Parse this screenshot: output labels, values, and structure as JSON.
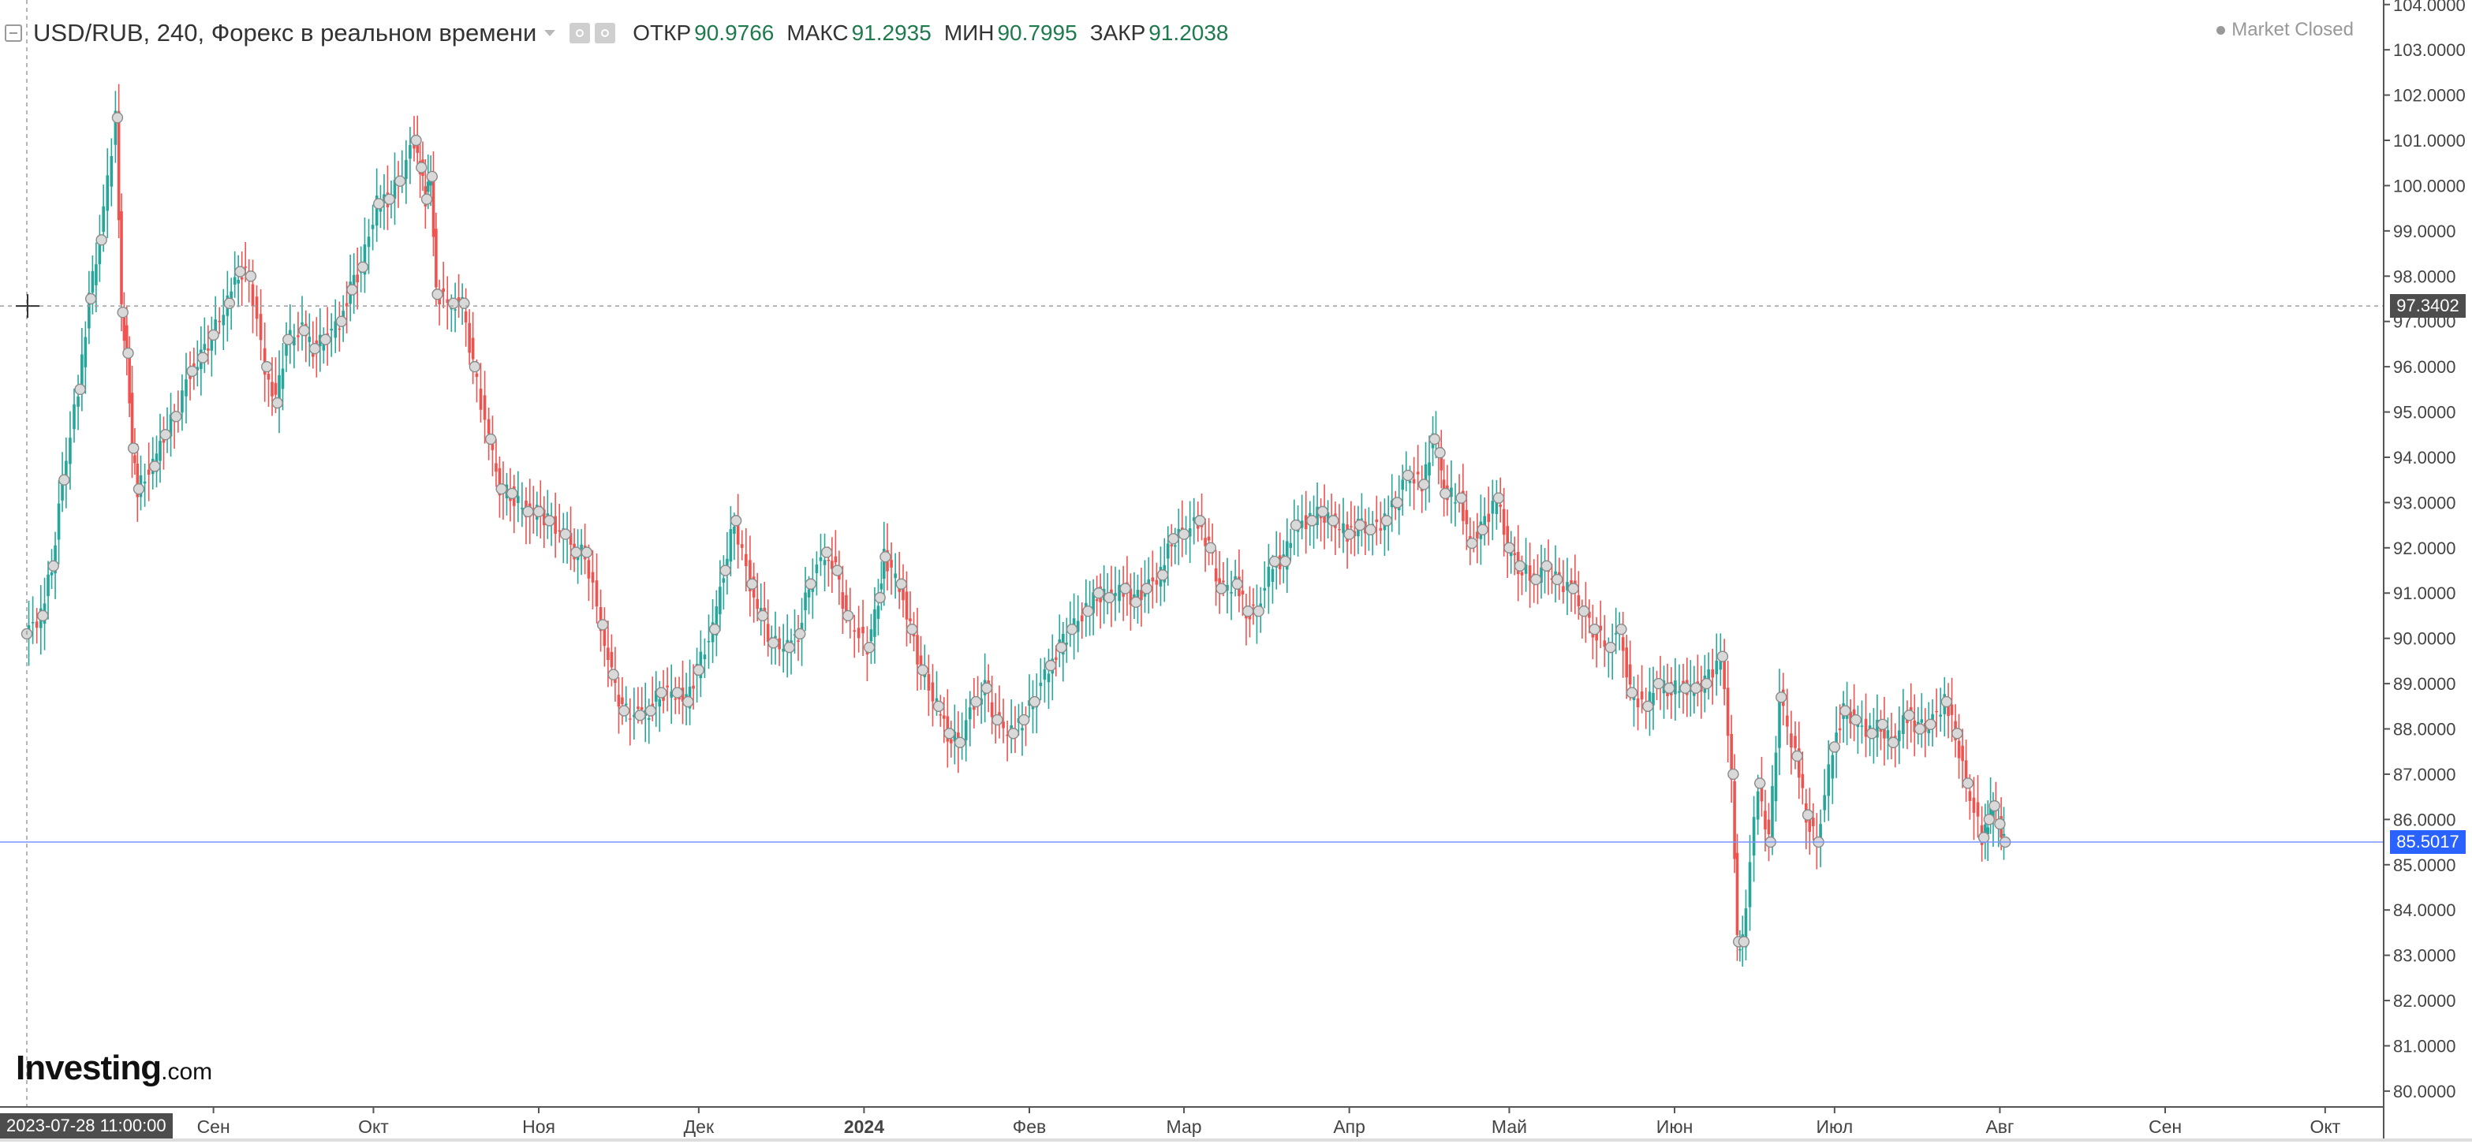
{
  "header": {
    "symbol_title": "USD/RUB, 240, Форекс в реальном времени",
    "ohlc": {
      "open_label": "ОТКР",
      "open_value": "90.9766",
      "high_label": "МАКС",
      "high_value": "91.2935",
      "low_label": "МИН",
      "low_value": "90.7995",
      "close_label": "ЗАКР",
      "close_value": "91.2038"
    }
  },
  "status": "Market Closed",
  "logo": {
    "main": "Investing",
    "suffix": ".com"
  },
  "crosshair": {
    "price_label": "97.3402",
    "time_label": "2023-07-28 11:00:00",
    "price": 97.3402
  },
  "last_price": {
    "label": "85.5017",
    "price": 85.5017
  },
  "colors": {
    "up": "#26a69a",
    "down": "#ef5350",
    "last_line": "#7b93ff",
    "crosshair": "#9e9e9e"
  },
  "chart_data": {
    "type": "line",
    "symbol": "USD/RUB",
    "timeframe": "240",
    "ylim": [
      79.65,
      104.1
    ],
    "y_ticks": [
      80,
      81,
      82,
      83,
      84,
      85,
      86,
      87,
      88,
      89,
      90,
      91,
      92,
      93,
      94,
      95,
      96,
      97,
      98,
      99,
      100,
      101,
      102,
      103,
      104
    ],
    "y_tick_labels": [
      "80.0000",
      "81.0000",
      "82.0000",
      "83.0000",
      "84.0000",
      "85.0000",
      "86.0000",
      "87.0000",
      "88.0000",
      "89.0000",
      "90.0000",
      "91.0000",
      "92.0000",
      "93.0000",
      "94.0000",
      "95.0000",
      "96.0000",
      "97.0000",
      "98.0000",
      "99.0000",
      "100.0000",
      "101.0000",
      "102.0000",
      "103.0000",
      "104.0000"
    ],
    "x_ticks": [
      {
        "label": "Сен",
        "date": "2023-09-01",
        "bold": false
      },
      {
        "label": "Окт",
        "date": "2023-10-01",
        "bold": false
      },
      {
        "label": "Ноя",
        "date": "2023-11-01",
        "bold": false
      },
      {
        "label": "Дек",
        "date": "2023-12-01",
        "bold": false
      },
      {
        "label": "2024",
        "date": "2024-01-01",
        "bold": true
      },
      {
        "label": "Фев",
        "date": "2024-02-01",
        "bold": false
      },
      {
        "label": "Мар",
        "date": "2024-03-01",
        "bold": false
      },
      {
        "label": "Апр",
        "date": "2024-04-01",
        "bold": false
      },
      {
        "label": "Май",
        "date": "2024-05-01",
        "bold": false
      },
      {
        "label": "Июн",
        "date": "2024-06-01",
        "bold": false
      },
      {
        "label": "Июл",
        "date": "2024-07-01",
        "bold": false
      },
      {
        "label": "Авг",
        "date": "2024-08-01",
        "bold": false
      },
      {
        "label": "Сен",
        "date": "2024-09-01",
        "bold": false
      },
      {
        "label": "Окт",
        "date": "2024-10-01",
        "bold": false
      }
    ],
    "x_range": [
      "2023-07-28",
      "2024-10-17"
    ],
    "series": [
      {
        "points": [
          [
            "2023-07-28",
            90.1
          ],
          [
            "2023-07-31",
            90.5
          ],
          [
            "2023-08-02",
            91.6
          ],
          [
            "2023-08-04",
            93.5
          ],
          [
            "2023-08-07",
            95.5
          ],
          [
            "2023-08-09",
            97.5
          ],
          [
            "2023-08-11",
            98.8
          ],
          [
            "2023-08-14",
            101.5
          ],
          [
            "2023-08-15",
            97.2
          ],
          [
            "2023-08-16",
            96.3
          ],
          [
            "2023-08-17",
            94.2
          ],
          [
            "2023-08-18",
            93.3
          ],
          [
            "2023-08-21",
            93.8
          ],
          [
            "2023-08-23",
            94.5
          ],
          [
            "2023-08-25",
            94.9
          ],
          [
            "2023-08-28",
            95.9
          ],
          [
            "2023-08-30",
            96.2
          ],
          [
            "2023-09-01",
            96.7
          ],
          [
            "2023-09-04",
            97.4
          ],
          [
            "2023-09-06",
            98.1
          ],
          [
            "2023-09-08",
            98.0
          ],
          [
            "2023-09-11",
            96.0
          ],
          [
            "2023-09-13",
            95.2
          ],
          [
            "2023-09-15",
            96.6
          ],
          [
            "2023-09-18",
            96.8
          ],
          [
            "2023-09-20",
            96.4
          ],
          [
            "2023-09-22",
            96.6
          ],
          [
            "2023-09-25",
            97.0
          ],
          [
            "2023-09-27",
            97.7
          ],
          [
            "2023-09-29",
            98.2
          ],
          [
            "2023-10-02",
            99.6
          ],
          [
            "2023-10-04",
            99.7
          ],
          [
            "2023-10-06",
            100.1
          ],
          [
            "2023-10-09",
            101.0
          ],
          [
            "2023-10-10",
            100.4
          ],
          [
            "2023-10-11",
            99.7
          ],
          [
            "2023-10-12",
            100.2
          ],
          [
            "2023-10-13",
            97.6
          ],
          [
            "2023-10-16",
            97.4
          ],
          [
            "2023-10-18",
            97.4
          ],
          [
            "2023-10-20",
            96.0
          ],
          [
            "2023-10-23",
            94.4
          ],
          [
            "2023-10-25",
            93.3
          ],
          [
            "2023-10-27",
            93.2
          ],
          [
            "2023-10-30",
            92.8
          ],
          [
            "2023-11-01",
            92.8
          ],
          [
            "2023-11-03",
            92.6
          ],
          [
            "2023-11-06",
            92.3
          ],
          [
            "2023-11-08",
            91.9
          ],
          [
            "2023-11-10",
            91.9
          ],
          [
            "2023-11-13",
            90.3
          ],
          [
            "2023-11-15",
            89.2
          ],
          [
            "2023-11-17",
            88.4
          ],
          [
            "2023-11-20",
            88.3
          ],
          [
            "2023-11-22",
            88.4
          ],
          [
            "2023-11-24",
            88.8
          ],
          [
            "2023-11-27",
            88.8
          ],
          [
            "2023-11-29",
            88.6
          ],
          [
            "2023-12-01",
            89.3
          ],
          [
            "2023-12-04",
            90.2
          ],
          [
            "2023-12-06",
            91.5
          ],
          [
            "2023-12-08",
            92.6
          ],
          [
            "2023-12-11",
            91.2
          ],
          [
            "2023-12-13",
            90.5
          ],
          [
            "2023-12-15",
            89.9
          ],
          [
            "2023-12-18",
            89.8
          ],
          [
            "2023-12-20",
            90.1
          ],
          [
            "2023-12-22",
            91.2
          ],
          [
            "2023-12-25",
            91.9
          ],
          [
            "2023-12-27",
            91.5
          ],
          [
            "2023-12-29",
            90.5
          ],
          [
            "2024-01-02",
            89.8
          ],
          [
            "2024-01-04",
            90.9
          ],
          [
            "2024-01-05",
            91.8
          ],
          [
            "2024-01-08",
            91.2
          ],
          [
            "2024-01-10",
            90.2
          ],
          [
            "2024-01-12",
            89.3
          ],
          [
            "2024-01-15",
            88.5
          ],
          [
            "2024-01-17",
            87.9
          ],
          [
            "2024-01-19",
            87.7
          ],
          [
            "2024-01-22",
            88.6
          ],
          [
            "2024-01-24",
            88.9
          ],
          [
            "2024-01-26",
            88.2
          ],
          [
            "2024-01-29",
            87.9
          ],
          [
            "2024-01-31",
            88.2
          ],
          [
            "2024-02-02",
            88.6
          ],
          [
            "2024-02-05",
            89.4
          ],
          [
            "2024-02-07",
            89.8
          ],
          [
            "2024-02-09",
            90.2
          ],
          [
            "2024-02-12",
            90.6
          ],
          [
            "2024-02-14",
            91.0
          ],
          [
            "2024-02-16",
            90.9
          ],
          [
            "2024-02-19",
            91.1
          ],
          [
            "2024-02-21",
            90.8
          ],
          [
            "2024-02-23",
            91.1
          ],
          [
            "2024-02-26",
            91.4
          ],
          [
            "2024-02-28",
            92.2
          ],
          [
            "2024-03-01",
            92.3
          ],
          [
            "2024-03-04",
            92.6
          ],
          [
            "2024-03-06",
            92.0
          ],
          [
            "2024-03-08",
            91.1
          ],
          [
            "2024-03-11",
            91.2
          ],
          [
            "2024-03-13",
            90.6
          ],
          [
            "2024-03-15",
            90.6
          ],
          [
            "2024-03-18",
            91.7
          ],
          [
            "2024-03-20",
            91.7
          ],
          [
            "2024-03-22",
            92.5
          ],
          [
            "2024-03-25",
            92.6
          ],
          [
            "2024-03-27",
            92.8
          ],
          [
            "2024-03-29",
            92.6
          ],
          [
            "2024-04-01",
            92.3
          ],
          [
            "2024-04-03",
            92.5
          ],
          [
            "2024-04-05",
            92.4
          ],
          [
            "2024-04-08",
            92.6
          ],
          [
            "2024-04-10",
            93.0
          ],
          [
            "2024-04-12",
            93.6
          ],
          [
            "2024-04-15",
            93.4
          ],
          [
            "2024-04-17",
            94.4
          ],
          [
            "2024-04-18",
            94.1
          ],
          [
            "2024-04-19",
            93.2
          ],
          [
            "2024-04-22",
            93.1
          ],
          [
            "2024-04-24",
            92.1
          ],
          [
            "2024-04-26",
            92.4
          ],
          [
            "2024-04-29",
            93.1
          ],
          [
            "2024-05-01",
            92.0
          ],
          [
            "2024-05-03",
            91.6
          ],
          [
            "2024-05-06",
            91.3
          ],
          [
            "2024-05-08",
            91.6
          ],
          [
            "2024-05-10",
            91.3
          ],
          [
            "2024-05-13",
            91.1
          ],
          [
            "2024-05-15",
            90.6
          ],
          [
            "2024-05-17",
            90.2
          ],
          [
            "2024-05-20",
            89.8
          ],
          [
            "2024-05-22",
            90.2
          ],
          [
            "2024-05-24",
            88.8
          ],
          [
            "2024-05-27",
            88.5
          ],
          [
            "2024-05-29",
            89.0
          ],
          [
            "2024-05-31",
            88.9
          ],
          [
            "2024-06-03",
            88.9
          ],
          [
            "2024-06-05",
            88.9
          ],
          [
            "2024-06-07",
            89.0
          ],
          [
            "2024-06-10",
            89.6
          ],
          [
            "2024-06-12",
            87.0
          ],
          [
            "2024-06-13",
            83.3
          ],
          [
            "2024-06-14",
            83.3
          ],
          [
            "2024-06-17",
            86.8
          ],
          [
            "2024-06-19",
            85.5
          ],
          [
            "2024-06-21",
            88.7
          ],
          [
            "2024-06-24",
            87.4
          ],
          [
            "2024-06-26",
            86.1
          ],
          [
            "2024-06-28",
            85.5
          ],
          [
            "2024-07-01",
            87.6
          ],
          [
            "2024-07-03",
            88.4
          ],
          [
            "2024-07-05",
            88.2
          ],
          [
            "2024-07-08",
            87.9
          ],
          [
            "2024-07-10",
            88.1
          ],
          [
            "2024-07-12",
            87.7
          ],
          [
            "2024-07-15",
            88.3
          ],
          [
            "2024-07-17",
            88.0
          ],
          [
            "2024-07-19",
            88.1
          ],
          [
            "2024-07-22",
            88.6
          ],
          [
            "2024-07-24",
            87.9
          ],
          [
            "2024-07-26",
            86.8
          ],
          [
            "2024-07-29",
            85.6
          ],
          [
            "2024-07-30",
            86.0
          ],
          [
            "2024-07-31",
            86.3
          ],
          [
            "2024-08-01",
            85.9
          ],
          [
            "2024-08-02",
            85.5
          ]
        ]
      }
    ]
  }
}
